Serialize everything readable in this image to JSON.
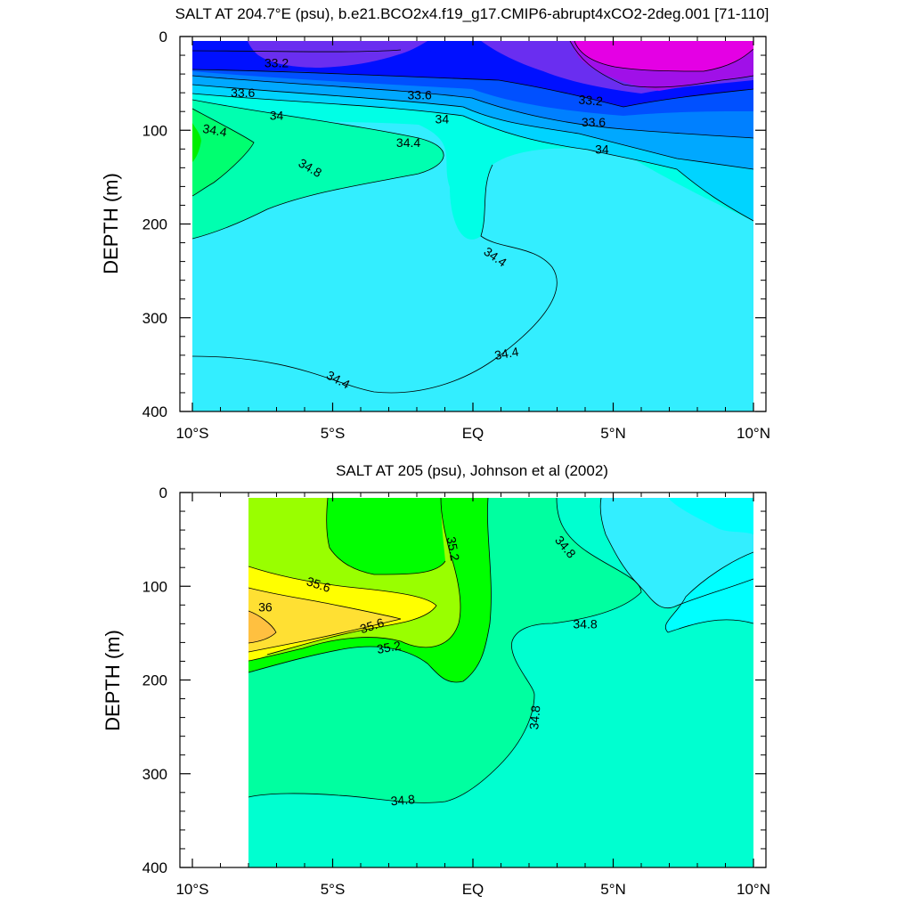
{
  "chart_data": [
    {
      "type": "contour",
      "title": "SALT AT 204.7°E (psu), b.e21.BCO2x4.f19_g17.CMIP6-abrupt4xCO2-2deg.001 [71-110]",
      "ylabel": "DEPTH (m)",
      "xlim": [
        -10,
        10
      ],
      "ylim": [
        400,
        0
      ],
      "x_ticks": [
        {
          "value": -10,
          "label": "10°S"
        },
        {
          "value": -5,
          "label": "5°S"
        },
        {
          "value": 0,
          "label": "EQ"
        },
        {
          "value": 5,
          "label": "5°N"
        },
        {
          "value": 10,
          "label": "10°N"
        }
      ],
      "y_ticks": [
        {
          "value": 0,
          "label": "0"
        },
        {
          "value": 100,
          "label": "100"
        },
        {
          "value": 200,
          "label": "200"
        },
        {
          "value": 300,
          "label": "300"
        },
        {
          "value": 400,
          "label": "400"
        }
      ],
      "data_top": 5,
      "colors": {
        "v32_8": "#e400e4",
        "v33_0": "#a010e8",
        "v33_2": "#6a2ef0",
        "v33_4": "#0010ff",
        "v33_6": "#0050ff",
        "v33_8": "#0080ff",
        "v34_0": "#00a8ff",
        "v34_2": "#00d4ff",
        "v34_4": "#33eeff",
        "v34_6": "#00ffe6",
        "v34_8": "#00ffb0",
        "v35_0": "#00ff70",
        "v35_2": "#00ee00"
      },
      "contour_labels": [
        {
          "text": "33.2",
          "x": -7.0,
          "y": 28,
          "angle": 0
        },
        {
          "text": "33.6",
          "x": -8.2,
          "y": 60,
          "angle": 0
        },
        {
          "text": "33.6",
          "x": -1.9,
          "y": 62,
          "angle": 0
        },
        {
          "text": "33.2",
          "x": 4.2,
          "y": 68,
          "angle": 5
        },
        {
          "text": "34",
          "x": -7.0,
          "y": 84,
          "angle": 0
        },
        {
          "text": "34",
          "x": -1.1,
          "y": 88,
          "angle": 0
        },
        {
          "text": "33.6",
          "x": 4.3,
          "y": 91,
          "angle": 0
        },
        {
          "text": "34.4",
          "x": -9.2,
          "y": 100,
          "angle": 10
        },
        {
          "text": "34.4",
          "x": -2.3,
          "y": 113,
          "angle": 0
        },
        {
          "text": "34",
          "x": 4.6,
          "y": 120,
          "angle": 0
        },
        {
          "text": "34.8",
          "x": -5.8,
          "y": 140,
          "angle": 30
        },
        {
          "text": "34.4",
          "x": 0.8,
          "y": 235,
          "angle": 35
        },
        {
          "text": "34.4",
          "x": 1.2,
          "y": 338,
          "angle": -10
        },
        {
          "text": "34.4",
          "x": -4.8,
          "y": 366,
          "angle": 28
        }
      ]
    },
    {
      "type": "contour",
      "title": "SALT AT 205 (psu), Johnson et al (2002)",
      "ylabel": "DEPTH (m)",
      "xlim": [
        -10,
        10
      ],
      "ylim": [
        400,
        0
      ],
      "x_ticks": [
        {
          "value": -10,
          "label": "10°S"
        },
        {
          "value": -5,
          "label": "5°S"
        },
        {
          "value": 0,
          "label": "EQ"
        },
        {
          "value": 5,
          "label": "5°N"
        },
        {
          "value": 10,
          "label": "10°N"
        }
      ],
      "y_ticks": [
        {
          "value": 0,
          "label": "0"
        },
        {
          "value": 100,
          "label": "100"
        },
        {
          "value": 200,
          "label": "200"
        },
        {
          "value": 300,
          "label": "300"
        },
        {
          "value": 400,
          "label": "400"
        }
      ],
      "data_top": 5,
      "data_xmin": -8,
      "colors": {
        "v34_4": "#00ffff",
        "v34_6": "#33eeff",
        "v34_8": "#00ffd0",
        "v35_0": "#00ffa0",
        "v35_2": "#00ff00",
        "v35_4": "#99ff00",
        "v35_6": "#ffff00",
        "v35_8": "#ffe033",
        "v36_0": "#ffc040"
      },
      "contour_labels": [
        {
          "text": "35.2",
          "x": -0.7,
          "y": 60,
          "angle": 80
        },
        {
          "text": "34.8",
          "x": 3.3,
          "y": 58,
          "angle": 50
        },
        {
          "text": "35.6",
          "x": -5.5,
          "y": 98,
          "angle": 18
        },
        {
          "text": "36",
          "x": -7.4,
          "y": 122,
          "angle": 0
        },
        {
          "text": "35.6",
          "x": -3.6,
          "y": 142,
          "angle": -18
        },
        {
          "text": "35.2",
          "x": -3.0,
          "y": 165,
          "angle": -10
        },
        {
          "text": "34.8",
          "x": 4.0,
          "y": 140,
          "angle": 0
        },
        {
          "text": "34.8",
          "x": 2.2,
          "y": 240,
          "angle": -85
        },
        {
          "text": "34.8",
          "x": -2.5,
          "y": 328,
          "angle": -5
        }
      ]
    }
  ]
}
